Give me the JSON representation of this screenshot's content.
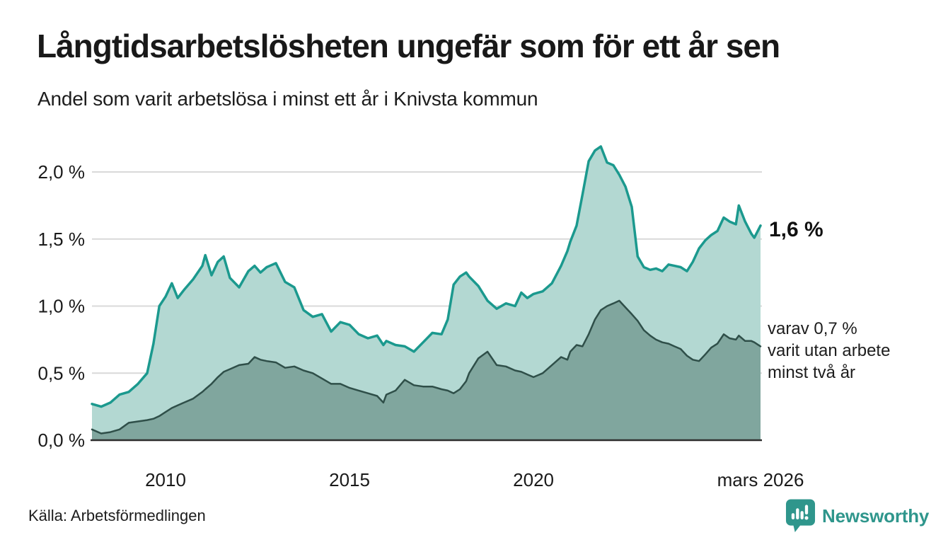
{
  "header": {
    "title": "Långtidsarbetslösheten ungefär som för ett år sen",
    "subtitle": "Andel som varit arbetslösa i minst ett år i Knivsta kommun"
  },
  "annotations": {
    "latest": "1,6 %",
    "two_year_lines": [
      "varav 0,7 %",
      "varit utan arbete",
      "minst två år"
    ]
  },
  "footer": {
    "source": "Källa: Arbetsförmedlingen",
    "brand": "Newsworthy"
  },
  "colors": {
    "upper_line": "#1b998e",
    "upper_fill": "#b3d8d2",
    "lower_line": "#2f4f49",
    "lower_fill": "#80a69e",
    "grid": "#d9d9d9",
    "baseline": "#2e2e2e",
    "text": "#1a1a1a",
    "brand_teal": "#2f968c"
  },
  "chart_data": {
    "type": "area",
    "title": "Långtidsarbetslösheten ungefär som för ett år sen",
    "subtitle": "Andel som varit arbetslösa i minst ett år i Knivsta kommun",
    "unit": "%",
    "x_range": [
      2008.0,
      2026.17
    ],
    "y_range": [
      0,
      2.2
    ],
    "grid": true,
    "y_ticks": [
      {
        "v": 0.0,
        "label": "0,0 %"
      },
      {
        "v": 0.5,
        "label": "0,5 %"
      },
      {
        "v": 1.0,
        "label": "1,0 %"
      },
      {
        "v": 1.5,
        "label": "1,5 %"
      },
      {
        "v": 2.0,
        "label": "2,0 %"
      }
    ],
    "x_ticks": [
      {
        "t": 2010,
        "label": "2010"
      },
      {
        "t": 2015,
        "label": "2015"
      },
      {
        "t": 2020,
        "label": "2020"
      },
      {
        "t": 2026.17,
        "label": "mars 2026"
      }
    ],
    "x": [
      2008.0,
      2008.25,
      2008.5,
      2008.75,
      2009.0,
      2009.25,
      2009.5,
      2009.67,
      2009.83,
      2010.0,
      2010.17,
      2010.33,
      2010.5,
      2010.75,
      2011.0,
      2011.08,
      2011.25,
      2011.42,
      2011.58,
      2011.75,
      2012.0,
      2012.25,
      2012.42,
      2012.58,
      2012.75,
      2013.0,
      2013.25,
      2013.5,
      2013.75,
      2014.0,
      2014.25,
      2014.5,
      2014.75,
      2015.0,
      2015.25,
      2015.5,
      2015.75,
      2015.92,
      2016.0,
      2016.25,
      2016.5,
      2016.75,
      2017.0,
      2017.25,
      2017.5,
      2017.67,
      2017.83,
      2018.0,
      2018.17,
      2018.25,
      2018.5,
      2018.75,
      2019.0,
      2019.25,
      2019.5,
      2019.67,
      2019.83,
      2020.0,
      2020.25,
      2020.5,
      2020.75,
      2020.92,
      2021.0,
      2021.17,
      2021.33,
      2021.5,
      2021.67,
      2021.83,
      2022.0,
      2022.17,
      2022.33,
      2022.5,
      2022.67,
      2022.83,
      2023.0,
      2023.17,
      2023.33,
      2023.5,
      2023.67,
      2023.83,
      2024.0,
      2024.17,
      2024.33,
      2024.5,
      2024.67,
      2024.83,
      2025.0,
      2025.17,
      2025.33,
      2025.5,
      2025.58,
      2025.75,
      2025.92,
      2026.0,
      2026.17
    ],
    "series": [
      {
        "name": "minst ett år",
        "latest_label": "1,6 %",
        "latest_value": 1.6,
        "values": [
          0.27,
          0.25,
          0.28,
          0.34,
          0.36,
          0.42,
          0.5,
          0.72,
          1.0,
          1.07,
          1.17,
          1.06,
          1.12,
          1.2,
          1.3,
          1.38,
          1.23,
          1.33,
          1.37,
          1.21,
          1.14,
          1.26,
          1.3,
          1.25,
          1.29,
          1.32,
          1.18,
          1.14,
          0.97,
          0.92,
          0.94,
          0.81,
          0.88,
          0.86,
          0.79,
          0.76,
          0.78,
          0.71,
          0.74,
          0.71,
          0.7,
          0.66,
          0.73,
          0.8,
          0.79,
          0.9,
          1.16,
          1.22,
          1.25,
          1.22,
          1.15,
          1.04,
          0.98,
          1.02,
          1.0,
          1.1,
          1.06,
          1.09,
          1.11,
          1.17,
          1.3,
          1.41,
          1.48,
          1.6,
          1.83,
          2.08,
          2.16,
          2.19,
          2.07,
          2.05,
          1.98,
          1.89,
          1.74,
          1.37,
          1.29,
          1.27,
          1.28,
          1.26,
          1.31,
          1.3,
          1.29,
          1.26,
          1.33,
          1.43,
          1.49,
          1.53,
          1.56,
          1.66,
          1.63,
          1.61,
          1.75,
          1.63,
          1.54,
          1.51,
          1.6
        ]
      },
      {
        "name": "minst två år",
        "latest_label": "varav 0,7 %",
        "latest_value": 0.7,
        "values": [
          0.08,
          0.05,
          0.06,
          0.08,
          0.13,
          0.14,
          0.15,
          0.16,
          0.18,
          0.21,
          0.24,
          0.26,
          0.28,
          0.31,
          0.36,
          0.38,
          0.42,
          0.47,
          0.51,
          0.53,
          0.56,
          0.57,
          0.62,
          0.6,
          0.59,
          0.58,
          0.54,
          0.55,
          0.52,
          0.5,
          0.46,
          0.42,
          0.42,
          0.39,
          0.37,
          0.35,
          0.33,
          0.28,
          0.34,
          0.37,
          0.45,
          0.41,
          0.4,
          0.4,
          0.38,
          0.37,
          0.35,
          0.38,
          0.44,
          0.5,
          0.61,
          0.66,
          0.56,
          0.55,
          0.52,
          0.51,
          0.49,
          0.47,
          0.5,
          0.56,
          0.62,
          0.6,
          0.66,
          0.71,
          0.7,
          0.79,
          0.9,
          0.97,
          1.0,
          1.02,
          1.04,
          0.99,
          0.94,
          0.89,
          0.82,
          0.78,
          0.75,
          0.73,
          0.72,
          0.7,
          0.68,
          0.63,
          0.6,
          0.59,
          0.64,
          0.69,
          0.72,
          0.79,
          0.76,
          0.75,
          0.78,
          0.74,
          0.74,
          0.73,
          0.7
        ]
      }
    ]
  }
}
